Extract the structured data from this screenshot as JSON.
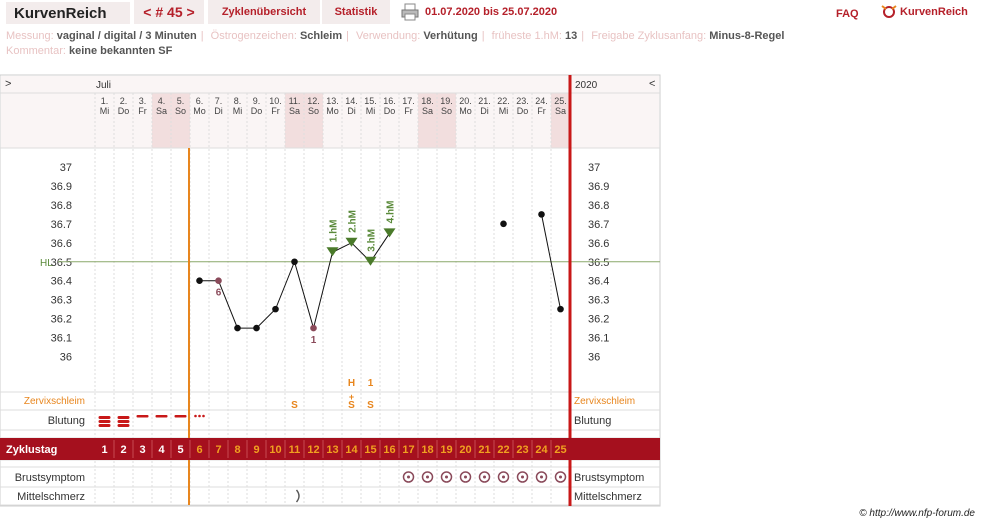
{
  "app": {
    "brand": "KurvenReich",
    "nav_label": "< # 45 >",
    "tab_overview": "Zyklenübersicht",
    "tab_statistics": "Statistik",
    "date_range": "01.07.2020 bis 25.07.2020",
    "faq": "FAQ",
    "logo_text": "KurvenReich",
    "copyright": "© http://www.nfp-forum.de"
  },
  "meta": {
    "messung_label": "Messung:",
    "messung_value": "vaginal / digital / 3 Minuten",
    "oestrogen_label": "Östrogenzeichen:",
    "oestrogen_value": "Schleim",
    "verwendung_label": "Verwendung:",
    "verwendung_value": "Verhütung",
    "frueheste_label": "früheste 1.hM:",
    "frueheste_value": "13",
    "freigabe_label": "Freigabe Zyklusanfang:",
    "freigabe_value": "Minus-8-Regel",
    "kommentar_label": "Kommentar:",
    "kommentar_value": "keine bekannten SF"
  },
  "header": {
    "month": "Juli",
    "year": "2020",
    "left_arrow": ">",
    "right_arrow": "<"
  },
  "row_labels": {
    "zervix": "Zervixschleim",
    "blutung": "Blutung",
    "zyklustag": "Zyklustag",
    "brust": "Brustsymptom",
    "mittel": "Mittelschmerz",
    "hl": "HL"
  },
  "colors": {
    "dark_red": "#a5101e",
    "orange": "#e8861e",
    "green": "#5a8a3a",
    "weekend": "#f2dede"
  },
  "chart_data": {
    "type": "line",
    "ylim": [
      36.0,
      37.0
    ],
    "y_ticks": [
      "37",
      "36.9",
      "36.8",
      "36.7",
      "36.6",
      "36.5",
      "36.4",
      "36.3",
      "36.2",
      "36.1",
      "36"
    ],
    "cover_line": 36.5,
    "days": [
      {
        "d": "1.",
        "w": "Mi"
      },
      {
        "d": "2.",
        "w": "Do"
      },
      {
        "d": "3.",
        "w": "Fr"
      },
      {
        "d": "4.",
        "w": "Sa"
      },
      {
        "d": "5.",
        "w": "So"
      },
      {
        "d": "6.",
        "w": "Mo"
      },
      {
        "d": "7.",
        "w": "Di"
      },
      {
        "d": "8.",
        "w": "Mi"
      },
      {
        "d": "9.",
        "w": "Do"
      },
      {
        "d": "10.",
        "w": "Fr"
      },
      {
        "d": "11.",
        "w": "Sa"
      },
      {
        "d": "12.",
        "w": "So"
      },
      {
        "d": "13.",
        "w": "Mo"
      },
      {
        "d": "14.",
        "w": "Di"
      },
      {
        "d": "15.",
        "w": "Mi"
      },
      {
        "d": "16.",
        "w": "Do"
      },
      {
        "d": "17.",
        "w": "Fr"
      },
      {
        "d": "18.",
        "w": "Sa"
      },
      {
        "d": "19.",
        "w": "So"
      },
      {
        "d": "20.",
        "w": "Mo"
      },
      {
        "d": "21.",
        "w": "Di"
      },
      {
        "d": "22.",
        "w": "Mi"
      },
      {
        "d": "23.",
        "w": "Do"
      },
      {
        "d": "24.",
        "w": "Fr"
      },
      {
        "d": "25.",
        "w": "Sa"
      }
    ],
    "weekend_days": [
      4,
      5,
      11,
      12,
      18,
      19,
      25
    ],
    "cycle_days": [
      "1",
      "2",
      "3",
      "4",
      "5",
      "6",
      "7",
      "8",
      "9",
      "10",
      "11",
      "12",
      "13",
      "14",
      "15",
      "16",
      "17",
      "18",
      "19",
      "20",
      "21",
      "22",
      "23",
      "24",
      "25"
    ],
    "temperatures": [
      {
        "day": 6,
        "temp": 36.4
      },
      {
        "day": 7,
        "temp": 36.4,
        "excluded": true,
        "label": "6"
      },
      {
        "day": 8,
        "temp": 36.15
      },
      {
        "day": 9,
        "temp": 36.15
      },
      {
        "day": 10,
        "temp": 36.25
      },
      {
        "day": 11,
        "temp": 36.5
      },
      {
        "day": 12,
        "temp": 36.15,
        "excluded": true,
        "label": "1"
      },
      {
        "day": 13,
        "temp": 36.55,
        "hm": "1.hM"
      },
      {
        "day": 14,
        "temp": 36.6,
        "hm": "2.hM"
      },
      {
        "day": 15,
        "temp": 36.5,
        "hm": "3.hM"
      },
      {
        "day": 16,
        "temp": 36.65,
        "hm": "4.hM"
      },
      {
        "day": 22,
        "temp": 36.7,
        "isolated": true
      },
      {
        "day": 24,
        "temp": 36.75
      },
      {
        "day": 25,
        "temp": 36.25
      }
    ],
    "zervix": [
      {
        "day": 11,
        "text": "S"
      },
      {
        "day": 14,
        "text": "S",
        "top": "H",
        "mid": "+"
      },
      {
        "day": 15,
        "text": "S",
        "top": "1"
      }
    ],
    "bleeding": [
      {
        "day": 1,
        "level": "heavy"
      },
      {
        "day": 2,
        "level": "heavy"
      },
      {
        "day": 3,
        "level": "medium"
      },
      {
        "day": 4,
        "level": "medium"
      },
      {
        "day": 5,
        "level": "medium"
      },
      {
        "day": 6,
        "level": "spotting"
      }
    ],
    "breast_days": [
      17,
      18,
      19,
      20,
      21,
      22,
      23,
      24,
      25
    ],
    "mittelschmerz_days": [
      11
    ]
  }
}
